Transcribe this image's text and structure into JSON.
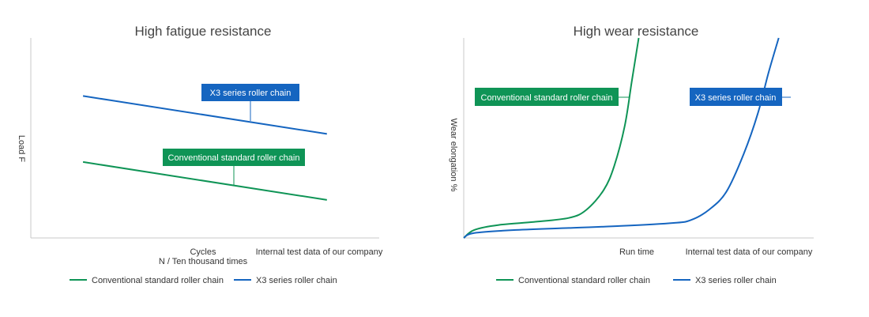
{
  "colors": {
    "green": "#0f9456",
    "blue": "#1565c0",
    "axis": "#c8c8c8"
  },
  "chart_data": [
    {
      "type": "line",
      "title": "High fatigue resistance",
      "xlabel": "Cycles",
      "xlabel_sub": "N / Ten thousand times",
      "ylabel": "Load F",
      "note": "Internal test data of our company",
      "xlim": [
        0,
        100
      ],
      "ylim": [
        0,
        100
      ],
      "series": [
        {
          "name": "Conventional standard roller chain",
          "color": "#0f9456",
          "x": [
            15,
            85
          ],
          "y": [
            38,
            19
          ],
          "callout": "Conventional standard roller chain"
        },
        {
          "name": "X3 series roller chain",
          "color": "#1565c0",
          "x": [
            15,
            85
          ],
          "y": [
            71,
            52
          ],
          "callout": "X3 series roller chain"
        }
      ]
    },
    {
      "type": "line",
      "title": "High wear resistance",
      "xlabel": "Run time",
      "ylabel": "Wear elongation %",
      "note": "Internal test data of our company",
      "xlim": [
        0,
        100
      ],
      "ylim": [
        0,
        100
      ],
      "series": [
        {
          "name": "Conventional standard roller chain",
          "color": "#0f9456",
          "x": [
            0,
            3,
            10,
            20,
            30,
            35,
            40,
            43,
            46,
            48,
            50
          ],
          "y": [
            0,
            4,
            6.5,
            8,
            10,
            14,
            24,
            36,
            56,
            78,
            100
          ],
          "callout": "Conventional standard roller chain"
        },
        {
          "name": "X3 series roller chain",
          "color": "#1565c0",
          "x": [
            0,
            3,
            15,
            30,
            45,
            60,
            65,
            70,
            75,
            80,
            84,
            87,
            90
          ],
          "y": [
            0,
            2.5,
            4,
            5,
            6,
            7.5,
            9,
            14,
            23,
            42,
            62,
            82,
            100
          ],
          "callout": "X3 series roller chain"
        }
      ]
    }
  ]
}
